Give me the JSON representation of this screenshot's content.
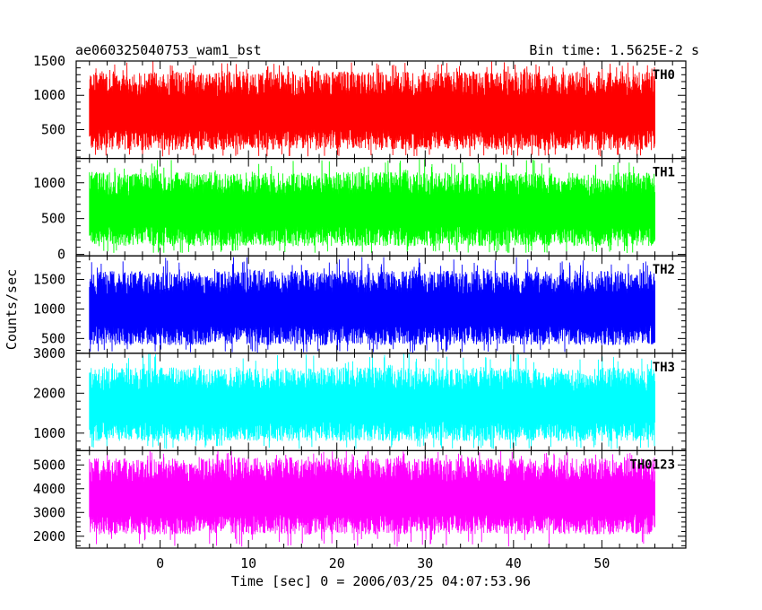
{
  "header": {
    "title": "ae060325040753_wam1_bst",
    "bin_time": "Bin time: 1.5625E-2 s"
  },
  "axes": {
    "ylabel": "Counts/sec",
    "xlabel": "Time [sec] 0 = 2006/03/25 04:07:53.96"
  },
  "chart_data": {
    "type": "line",
    "title": "ae060325040753_wam1_bst",
    "subtitle": "Bin time: 1.5625E-2 s",
    "xlabel": "Time [sec] 0 = 2006/03/25 04:07:53.96",
    "ylabel": "Counts/sec",
    "xlim": [
      -9.5,
      59.5
    ],
    "x_ticks": [
      0,
      10,
      20,
      30,
      40,
      50
    ],
    "x_tick_labels": [
      "0",
      "10",
      "20",
      "30",
      "40",
      "50"
    ],
    "x_data_range": [
      -8,
      56
    ],
    "grid": false,
    "panels": [
      {
        "name": "TH0",
        "color": "#ff0000",
        "ylim": [
          80,
          1500
        ],
        "y_ticks": [
          500,
          1000,
          1500
        ],
        "y_tick_labels": [
          "500",
          "1000",
          "1500"
        ],
        "typical_range": [
          140,
          1350
        ],
        "min_estimate": 110,
        "max_estimate": 1500
      },
      {
        "name": "TH1",
        "color": "#00ff00",
        "ylim": [
          -20,
          1340
        ],
        "y_ticks": [
          0,
          500,
          1000
        ],
        "y_tick_labels": [
          "0",
          "500",
          "1000"
        ],
        "typical_range": [
          60,
          1150
        ],
        "min_estimate": 20,
        "max_estimate": 1330
      },
      {
        "name": "TH2",
        "color": "#0000ff",
        "ylim": [
          250,
          1900
        ],
        "y_ticks": [
          500,
          1000,
          1500
        ],
        "y_tick_labels": [
          "500",
          "1000",
          "1500"
        ],
        "typical_range": [
          320,
          1650
        ],
        "min_estimate": 260,
        "max_estimate": 1880
      },
      {
        "name": "TH3",
        "color": "#00ffff",
        "ylim": [
          560,
          3000
        ],
        "y_ticks": [
          1000,
          2000,
          3000
        ],
        "y_tick_labels": [
          "1000",
          "2000",
          "3000"
        ],
        "typical_range": [
          700,
          2650
        ],
        "min_estimate": 600,
        "max_estimate": 3000
      },
      {
        "name": "TH0123",
        "color": "#ff00ff",
        "ylim": [
          1500,
          5600
        ],
        "y_ticks": [
          2000,
          3000,
          4000,
          5000
        ],
        "y_tick_labels": [
          "2000",
          "3000",
          "4000",
          "5000"
        ],
        "typical_range": [
          1900,
          5300
        ],
        "min_estimate": 1550,
        "max_estimate": 5600
      }
    ]
  }
}
